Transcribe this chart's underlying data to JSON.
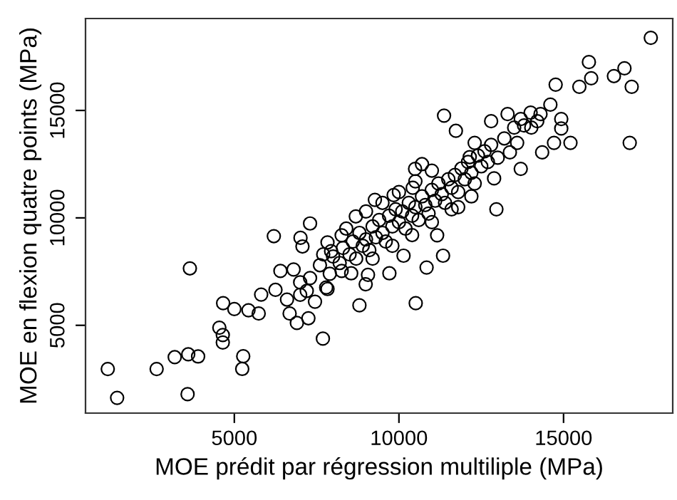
{
  "chart_data": {
    "type": "scatter",
    "xlabel": "MOE prédit par régression multiliple (MPa)",
    "ylabel": "MOE en flexion quatre points (MPa)",
    "xlim": [
      480,
      18316
    ],
    "ylim": [
      914,
      19278
    ],
    "xticks": [
      5000,
      10000,
      15000
    ],
    "yticks": [
      5000,
      10000,
      15000
    ],
    "grid": false,
    "legend": false,
    "marker": "circle",
    "series": [
      {
        "color": "#000000",
        "x": [
          1156,
          1440,
          2640,
          3190,
          3580,
          3650,
          3600,
          3900,
          4545,
          4650,
          4650,
          4660,
          5000,
          5270,
          5240,
          5430,
          5740,
          5815,
          6250,
          6400,
          6680,
          6900,
          7250,
          7690,
          7000,
          7450,
          7790,
          7070,
          7940,
          6200,
          7300,
          7010,
          17650,
          15770,
          16850,
          15840,
          16530,
          17070,
          15480,
          14760,
          17010,
          15210,
          14710,
          14350,
          11370,
          11730,
          12800,
          12960,
          12890,
          11800,
          11160,
          13700,
          14600,
          14300,
          14930,
          14930,
          13300,
          13800,
          14020,
          13590,
          13370,
          12300,
          12150,
          10490,
          10700,
          10420,
          9840,
          9270,
          8690,
          8260,
          7830,
          11340,
          10840,
          10510,
          8800,
          9710,
          9060,
          8990,
          10140,
          8550,
          8260,
          7830,
          8000,
          8200,
          8300,
          8500,
          8600,
          8700,
          8800,
          8900,
          9000,
          9100,
          9200,
          9300,
          9400,
          9500,
          9600,
          9700,
          9800,
          9900,
          10000,
          10100,
          10200,
          10300,
          10400,
          10500,
          10600,
          10700,
          10800,
          10900,
          11000,
          11100,
          11200,
          11300,
          11400,
          11500,
          11600,
          11700,
          11800,
          11900,
          12000,
          12100,
          12200,
          12300,
          12400,
          12500,
          12600,
          12700,
          12800,
          13000,
          13200,
          13500,
          13700,
          14000,
          14200,
          8400,
          9000,
          9500,
          10000,
          10500,
          11000,
          9200,
          9800,
          10400,
          11000,
          11600,
          12200,
          7600,
          7300,
          7000,
          6800,
          6600,
          7200,
          7700,
          7900
        ],
        "values": [
          2967,
          1623,
          2967,
          3517,
          1795,
          7650,
          3650,
          3550,
          4890,
          4550,
          4200,
          6030,
          5760,
          3560,
          2970,
          5700,
          5550,
          6430,
          6650,
          7530,
          5550,
          5110,
          5330,
          4380,
          6420,
          6100,
          6760,
          8670,
          8450,
          9150,
          9740,
          9070,
          18380,
          17250,
          16960,
          16500,
          16600,
          16100,
          16100,
          16200,
          13490,
          13490,
          13490,
          13050,
          14760,
          14050,
          14500,
          10400,
          11840,
          10500,
          9190,
          12280,
          15270,
          14830,
          14600,
          14160,
          14830,
          14300,
          14200,
          13490,
          13050,
          13490,
          12830,
          12280,
          12500,
          11400,
          11060,
          10840,
          10070,
          9190,
          8860,
          8240,
          7690,
          6030,
          5930,
          7420,
          7350,
          6910,
          8240,
          7420,
          7530,
          6690,
          8200,
          7900,
          8600,
          8300,
          8900,
          8100,
          9300,
          8700,
          9000,
          8500,
          9600,
          9100,
          9900,
          9300,
          8900,
          10100,
          9600,
          10400,
          9800,
          10300,
          9500,
          10700,
          10100,
          10500,
          9900,
          11000,
          10600,
          10200,
          11300,
          10800,
          11600,
          11100,
          10700,
          11800,
          11400,
          12000,
          11200,
          12300,
          11800,
          12600,
          12100,
          11600,
          12900,
          12400,
          13100,
          12600,
          13400,
          12800,
          13700,
          14200,
          14600,
          14900,
          14500,
          9500,
          10300,
          10700,
          11200,
          11700,
          12200,
          8100,
          8700,
          9200,
          9800,
          10400,
          11000,
          7800,
          7200,
          7000,
          7600,
          6200,
          6600,
          8300,
          7400
        ]
      }
    ]
  }
}
